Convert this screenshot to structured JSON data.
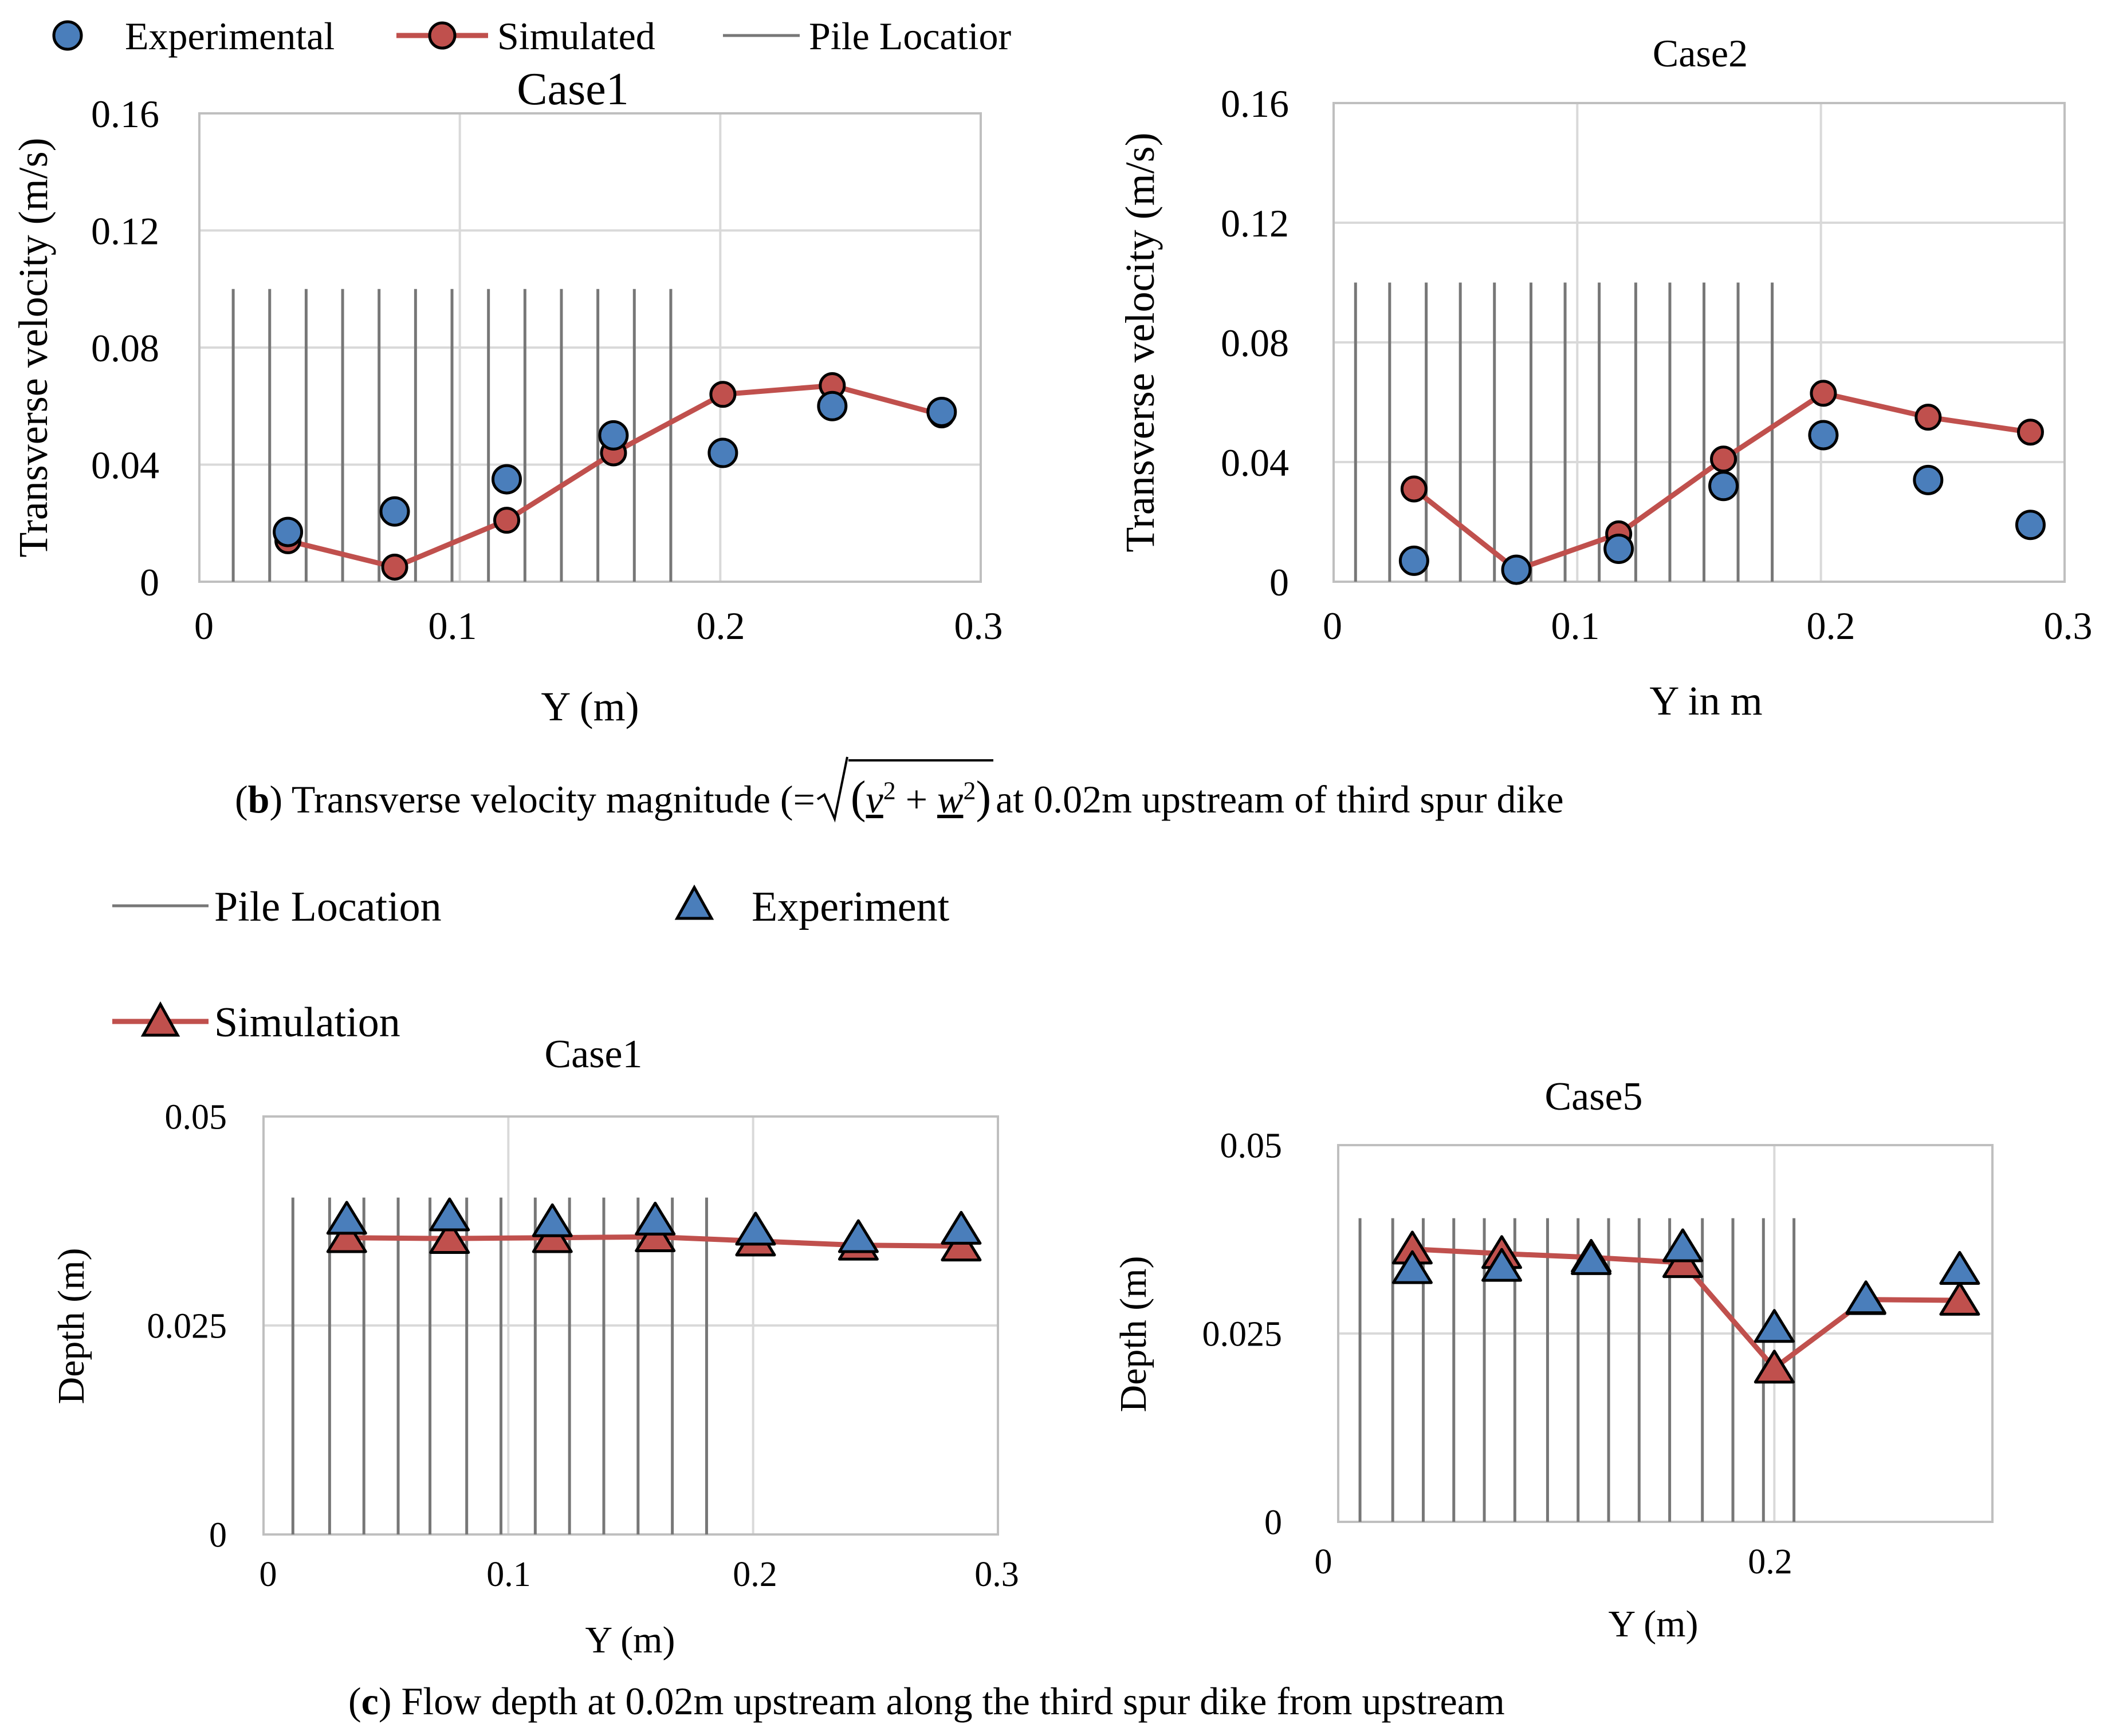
{
  "colors": {
    "experimental": "#4a7ebb",
    "simulated": "#c0504d",
    "pile": "#777777",
    "grid": "#d9d9d9",
    "axis": "#bfbfbf"
  },
  "legend_b": {
    "experimental": "Experimental",
    "simulated": "Simulated",
    "pile": "Pile Locatior"
  },
  "legend_c": {
    "pile": "Pile Location",
    "experiment": "Experiment",
    "simulation": "Simulation"
  },
  "captions": {
    "b_letter": "b",
    "b_text_1": ") Transverse velocity magnitude (=",
    "b_v": "v",
    "b_plus": "+",
    "b_w": "w",
    "b_text_2": "at 0.02m upstream of third spur dike",
    "c_letter": "c",
    "c_text": ") Flow depth at 0.02m upstream along the third spur dike from upstream"
  },
  "chart_data": [
    {
      "id": "b1",
      "type": "scatter+line",
      "title": "Case1",
      "xlabel": "Y (m)",
      "ylabel": "Transverse velocity (m/s)",
      "xlim": [
        0,
        0.3
      ],
      "ylim": [
        0,
        0.16
      ],
      "xticks": [
        0,
        0.1,
        0.2,
        0.3
      ],
      "xtick_labels": [
        "0",
        "0.1",
        "0.2",
        "0.3"
      ],
      "yticks": [
        0,
        0.04,
        0.08,
        0.12,
        0.16
      ],
      "ytick_labels": [
        "0",
        "0.04",
        "0.08",
        "0.12",
        "0.16"
      ],
      "pile_locations": [
        0.013,
        0.027,
        0.041,
        0.055,
        0.069,
        0.083,
        0.097,
        0.111,
        0.125,
        0.139,
        0.153,
        0.167,
        0.181
      ],
      "pile_height": 0.1,
      "series": [
        {
          "name": "Simulated",
          "marker": "circle",
          "line": true,
          "x": [
            0.034,
            0.075,
            0.118,
            0.159,
            0.201,
            0.243,
            0.285
          ],
          "y": [
            0.014,
            0.005,
            0.021,
            0.044,
            0.064,
            0.067,
            0.057
          ]
        },
        {
          "name": "Experimental",
          "marker": "circle",
          "line": false,
          "x": [
            0.034,
            0.075,
            0.118,
            0.159,
            0.201,
            0.243,
            0.285
          ],
          "y": [
            0.017,
            0.024,
            0.035,
            0.05,
            0.044,
            0.06,
            0.058
          ]
        }
      ]
    },
    {
      "id": "b2",
      "type": "scatter+line",
      "title": "Case2",
      "xlabel": "Y in m",
      "ylabel": "Transverse velocity (m/s)",
      "xlim": [
        0,
        0.3
      ],
      "ylim": [
        0,
        0.16
      ],
      "xticks": [
        0,
        0.1,
        0.2,
        0.3
      ],
      "xtick_labels": [
        "0",
        "0.1",
        "0.2",
        "0.3"
      ],
      "yticks": [
        0,
        0.04,
        0.08,
        0.12,
        0.16
      ],
      "ytick_labels": [
        "0",
        "0.04",
        "0.08",
        "0.12",
        "0.16"
      ],
      "pile_locations": [
        0.009,
        0.023,
        0.038,
        0.052,
        0.066,
        0.081,
        0.095,
        0.109,
        0.124,
        0.138,
        0.152,
        0.166,
        0.18
      ],
      "pile_height": 0.1,
      "series": [
        {
          "name": "Simulated",
          "marker": "circle",
          "line": true,
          "x": [
            0.033,
            0.075,
            0.117,
            0.16,
            0.201,
            0.244,
            0.286
          ],
          "y": [
            0.031,
            0.004,
            0.016,
            0.041,
            0.063,
            0.055,
            0.05
          ]
        },
        {
          "name": "Experimental",
          "marker": "circle",
          "line": false,
          "x": [
            0.033,
            0.075,
            0.117,
            0.16,
            0.201,
            0.244,
            0.286
          ],
          "y": [
            0.007,
            0.004,
            0.011,
            0.032,
            0.049,
            0.034,
            0.019
          ]
        }
      ]
    },
    {
      "id": "c1",
      "type": "scatter+line",
      "title": "Case1",
      "xlabel": "Y (m)",
      "ylabel": "Depth (m)",
      "xlim": [
        0,
        0.3
      ],
      "ylim": [
        0,
        0.05
      ],
      "xticks": [
        0,
        0.1,
        0.2,
        0.3
      ],
      "xtick_labels": [
        "0",
        "0.1",
        "0.2",
        "0.3"
      ],
      "yticks": [
        0,
        0.025,
        0.05
      ],
      "ytick_labels": [
        "0",
        "0.025",
        "0.05"
      ],
      "pile_locations": [
        0.012,
        0.027,
        0.041,
        0.055,
        0.068,
        0.083,
        0.097,
        0.111,
        0.125,
        0.139,
        0.153,
        0.167,
        0.181
      ],
      "pile_height": 0.0403,
      "series": [
        {
          "name": "Simulation",
          "marker": "triangle",
          "line": true,
          "x": [
            0.034,
            0.076,
            0.118,
            0.16,
            0.201,
            0.243,
            0.285
          ],
          "y": [
            0.0355,
            0.0354,
            0.0355,
            0.0356,
            0.0351,
            0.0346,
            0.0345
          ]
        },
        {
          "name": "Experiment",
          "marker": "triangle",
          "line": false,
          "x": [
            0.034,
            0.076,
            0.118,
            0.16,
            0.201,
            0.243,
            0.285
          ],
          "y": [
            0.0377,
            0.0381,
            0.0374,
            0.0376,
            0.0364,
            0.0355,
            0.0365
          ]
        }
      ]
    },
    {
      "id": "c2",
      "type": "scatter+line",
      "title": "Case5",
      "xlabel": "Y (m)",
      "ylabel": "Depth (m)",
      "xlim": [
        0,
        0.3
      ],
      "ylim": [
        0,
        0.05
      ],
      "xticks": [
        0,
        0.2
      ],
      "xtick_labels": [
        "0",
        "0.2"
      ],
      "yticks": [
        0,
        0.025,
        0.05
      ],
      "ytick_labels": [
        "0",
        "0.025",
        "0.05"
      ],
      "pile_locations": [
        0.01,
        0.025,
        0.039,
        0.053,
        0.067,
        0.081,
        0.096,
        0.11,
        0.124,
        0.138,
        0.152,
        0.167,
        0.181,
        0.195,
        0.209
      ],
      "pile_height": 0.0403,
      "series": [
        {
          "name": "Simulation",
          "marker": "triangle",
          "line": true,
          "x": [
            0.034,
            0.075,
            0.116,
            0.158,
            0.2,
            0.242,
            0.285
          ],
          "y": [
            0.0362,
            0.0356,
            0.0351,
            0.0344,
            0.0204,
            0.0295,
            0.0294
          ]
        },
        {
          "name": "Experiment",
          "marker": "triangle",
          "line": false,
          "x": [
            0.034,
            0.075,
            0.116,
            0.158,
            0.2,
            0.242,
            0.285
          ],
          "y": [
            0.0336,
            0.0339,
            0.0348,
            0.0365,
            0.0258,
            0.0296,
            0.0335
          ]
        }
      ]
    }
  ]
}
